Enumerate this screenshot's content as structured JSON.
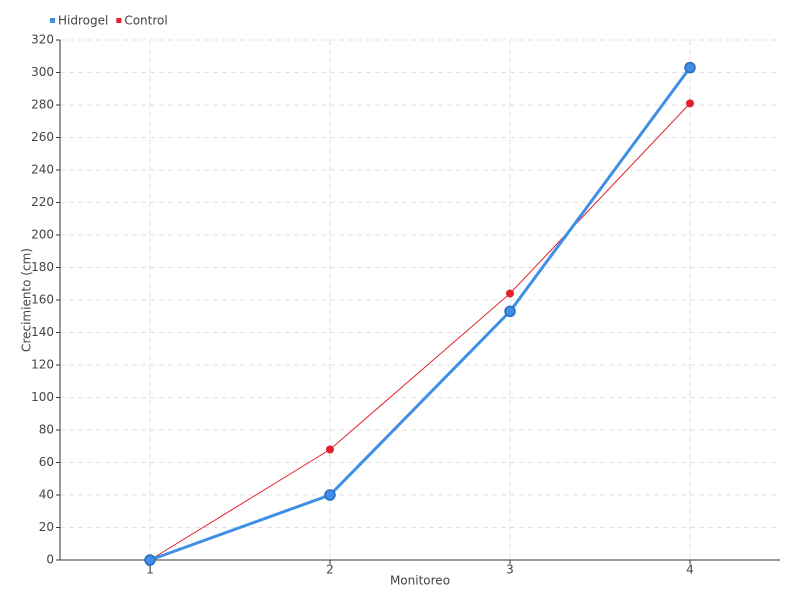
{
  "chart_data": {
    "type": "line",
    "x_label": "Monitoreo",
    "y_label": "Crecimiento (cm)",
    "x": [
      1,
      2,
      3,
      4
    ],
    "xlim": [
      0.5,
      4.5
    ],
    "xticks": [
      1,
      2,
      3,
      4
    ],
    "ylim": [
      0,
      320
    ],
    "yticks": [
      0,
      20,
      40,
      60,
      80,
      100,
      120,
      140,
      160,
      180,
      200,
      220,
      240,
      260,
      280,
      300,
      320
    ],
    "grid": true,
    "legend": "top-left",
    "series": [
      {
        "name": "Hidrogel",
        "color": "#3f8fe6",
        "values": [
          0,
          40,
          153,
          303
        ]
      },
      {
        "name": "Control",
        "color": "#e3202b",
        "values": [
          0,
          68,
          164,
          281
        ]
      }
    ]
  }
}
